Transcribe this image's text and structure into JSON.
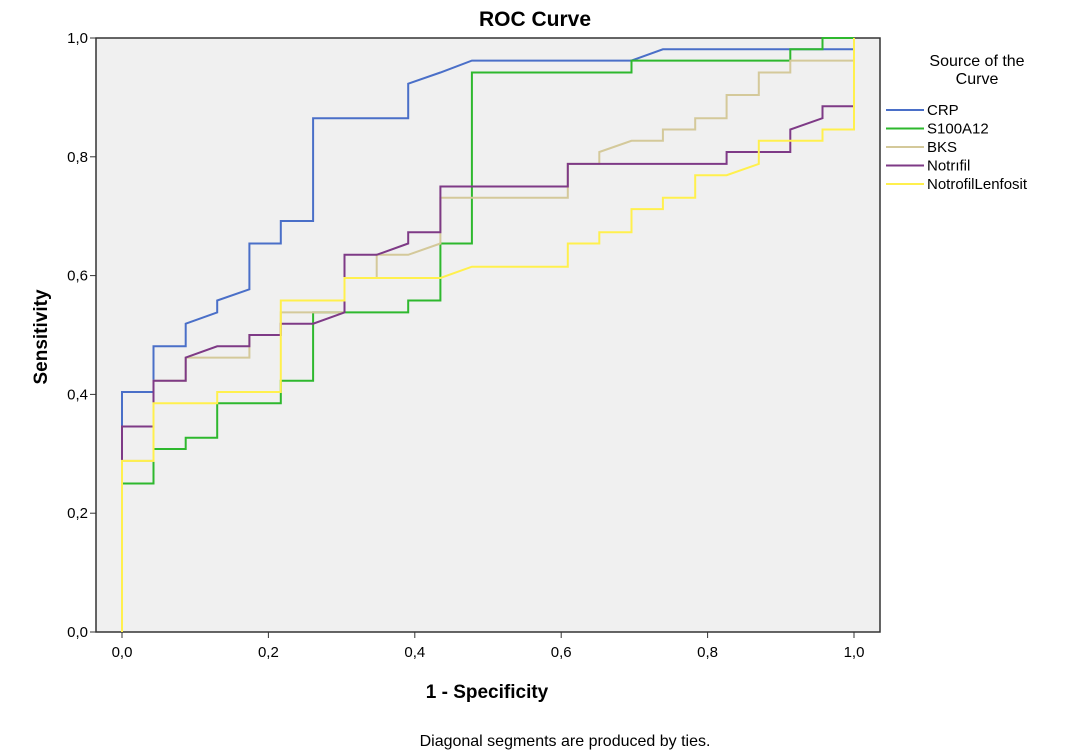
{
  "chart_data": {
    "type": "line",
    "title": "ROC Curve",
    "xlabel": "1 - Specificity",
    "ylabel": "Sensitivity",
    "xlim": [
      0,
      1
    ],
    "ylim": [
      0,
      1
    ],
    "xticks": [
      "0,0",
      "0,2",
      "0,4",
      "0,6",
      "0,8",
      "1,0"
    ],
    "yticks": [
      "0,0",
      "0,2",
      "0,4",
      "0,6",
      "0,8",
      "1,0"
    ],
    "grid": false,
    "background": "#f0f0f0",
    "legend": {
      "title_lines": [
        "Source of the",
        "Curve"
      ],
      "placement": "right"
    },
    "footnote": "Diagonal segments are produced by ties.",
    "series": [
      {
        "name": "CRP",
        "color": "#4a6fc8",
        "points": [
          [
            0,
            0
          ],
          [
            0,
            0.404
          ],
          [
            0.043,
            0.404
          ],
          [
            0.043,
            0.481
          ],
          [
            0.087,
            0.481
          ],
          [
            0.087,
            0.519
          ],
          [
            0.13,
            0.538
          ],
          [
            0.13,
            0.558
          ],
          [
            0.174,
            0.577
          ],
          [
            0.174,
            0.654
          ],
          [
            0.217,
            0.654
          ],
          [
            0.217,
            0.692
          ],
          [
            0.261,
            0.692
          ],
          [
            0.261,
            0.865
          ],
          [
            0.391,
            0.865
          ],
          [
            0.391,
            0.923
          ],
          [
            0.435,
            0.942
          ],
          [
            0.478,
            0.962
          ],
          [
            0.696,
            0.962
          ],
          [
            0.739,
            0.981
          ],
          [
            1,
            0.981
          ],
          [
            1,
            1
          ]
        ]
      },
      {
        "name": "S100A12",
        "color": "#2eb82e",
        "points": [
          [
            0,
            0
          ],
          [
            0,
            0.25
          ],
          [
            0.043,
            0.25
          ],
          [
            0.043,
            0.308
          ],
          [
            0.087,
            0.308
          ],
          [
            0.087,
            0.327
          ],
          [
            0.13,
            0.327
          ],
          [
            0.13,
            0.385
          ],
          [
            0.217,
            0.385
          ],
          [
            0.217,
            0.423
          ],
          [
            0.261,
            0.423
          ],
          [
            0.261,
            0.538
          ],
          [
            0.391,
            0.538
          ],
          [
            0.391,
            0.558
          ],
          [
            0.435,
            0.558
          ],
          [
            0.435,
            0.654
          ],
          [
            0.478,
            0.654
          ],
          [
            0.478,
            0.942
          ],
          [
            0.696,
            0.942
          ],
          [
            0.696,
            0.962
          ],
          [
            0.913,
            0.962
          ],
          [
            0.913,
            0.981
          ],
          [
            0.957,
            0.981
          ],
          [
            0.957,
            1
          ],
          [
            1,
            1
          ]
        ]
      },
      {
        "name": "BKS",
        "color": "#d4c99a",
        "points": [
          [
            0,
            0
          ],
          [
            0,
            0.288
          ],
          [
            0.043,
            0.288
          ],
          [
            0.043,
            0.423
          ],
          [
            0.087,
            0.423
          ],
          [
            0.087,
            0.462
          ],
          [
            0.174,
            0.462
          ],
          [
            0.174,
            0.5
          ],
          [
            0.217,
            0.5
          ],
          [
            0.217,
            0.538
          ],
          [
            0.304,
            0.538
          ],
          [
            0.304,
            0.596
          ],
          [
            0.348,
            0.596
          ],
          [
            0.348,
            0.635
          ],
          [
            0.391,
            0.635
          ],
          [
            0.435,
            0.654
          ],
          [
            0.435,
            0.731
          ],
          [
            0.609,
            0.731
          ],
          [
            0.609,
            0.788
          ],
          [
            0.652,
            0.788
          ],
          [
            0.652,
            0.808
          ],
          [
            0.696,
            0.827
          ],
          [
            0.739,
            0.827
          ],
          [
            0.739,
            0.846
          ],
          [
            0.783,
            0.846
          ],
          [
            0.783,
            0.865
          ],
          [
            0.826,
            0.865
          ],
          [
            0.826,
            0.904
          ],
          [
            0.87,
            0.904
          ],
          [
            0.87,
            0.942
          ],
          [
            0.913,
            0.942
          ],
          [
            0.913,
            0.962
          ],
          [
            1,
            0.962
          ],
          [
            1,
            1
          ]
        ]
      },
      {
        "name": "Notrıfil",
        "color": "#7e3a86",
        "points": [
          [
            0,
            0.288
          ],
          [
            0,
            0.346
          ],
          [
            0.043,
            0.346
          ],
          [
            0.043,
            0.423
          ],
          [
            0.087,
            0.423
          ],
          [
            0.087,
            0.462
          ],
          [
            0.13,
            0.481
          ],
          [
            0.174,
            0.481
          ],
          [
            0.174,
            0.5
          ],
          [
            0.217,
            0.5
          ],
          [
            0.217,
            0.519
          ],
          [
            0.261,
            0.519
          ],
          [
            0.304,
            0.538
          ],
          [
            0.304,
            0.635
          ],
          [
            0.348,
            0.635
          ],
          [
            0.391,
            0.654
          ],
          [
            0.391,
            0.673
          ],
          [
            0.435,
            0.673
          ],
          [
            0.435,
            0.75
          ],
          [
            0.609,
            0.75
          ],
          [
            0.609,
            0.788
          ],
          [
            0.826,
            0.788
          ],
          [
            0.826,
            0.808
          ],
          [
            0.913,
            0.808
          ],
          [
            0.913,
            0.846
          ],
          [
            0.957,
            0.865
          ],
          [
            0.957,
            0.885
          ],
          [
            1,
            0.885
          ],
          [
            1,
            1
          ]
        ]
      },
      {
        "name": "NotrofilLenfosit",
        "color": "#fff04d",
        "points": [
          [
            0,
            0
          ],
          [
            0,
            0.288
          ],
          [
            0.043,
            0.288
          ],
          [
            0.043,
            0.385
          ],
          [
            0.087,
            0.385
          ],
          [
            0.13,
            0.385
          ],
          [
            0.13,
            0.404
          ],
          [
            0.217,
            0.404
          ],
          [
            0.217,
            0.558
          ],
          [
            0.304,
            0.558
          ],
          [
            0.304,
            0.596
          ],
          [
            0.435,
            0.596
          ],
          [
            0.478,
            0.615
          ],
          [
            0.609,
            0.615
          ],
          [
            0.609,
            0.654
          ],
          [
            0.652,
            0.654
          ],
          [
            0.652,
            0.673
          ],
          [
            0.696,
            0.673
          ],
          [
            0.696,
            0.712
          ],
          [
            0.739,
            0.712
          ],
          [
            0.739,
            0.731
          ],
          [
            0.783,
            0.731
          ],
          [
            0.783,
            0.769
          ],
          [
            0.826,
            0.769
          ],
          [
            0.87,
            0.788
          ],
          [
            0.87,
            0.827
          ],
          [
            0.957,
            0.827
          ],
          [
            0.957,
            0.846
          ],
          [
            1,
            0.846
          ],
          [
            1,
            1
          ]
        ]
      }
    ]
  }
}
